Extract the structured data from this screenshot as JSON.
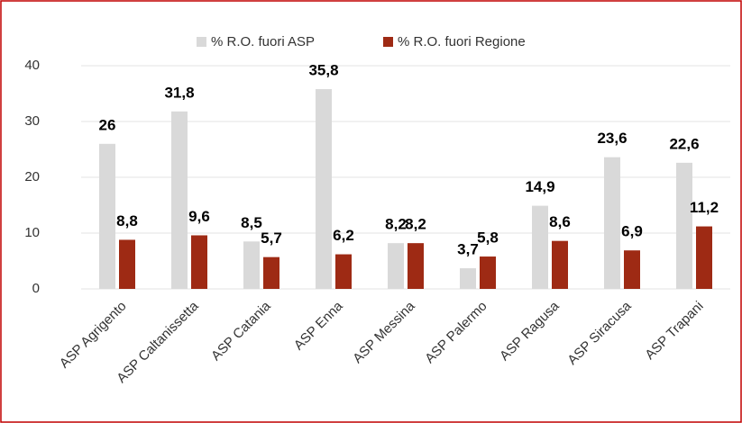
{
  "chart_data": {
    "type": "bar",
    "categories": [
      "ASP Agrigento",
      "ASP Caltanissetta",
      "ASP Catania",
      "ASP Enna",
      "ASP Messina",
      "ASP Palermo",
      "ASP Ragusa",
      "ASP Siracusa",
      "ASP Trapani"
    ],
    "series": [
      {
        "name": "% R.O. fuori ASP",
        "color": "#d9d9d9",
        "values": [
          26,
          31.8,
          8.5,
          35.8,
          8.2,
          3.7,
          14.9,
          23.6,
          22.6
        ],
        "value_labels": [
          "26",
          "31,8",
          "8,5",
          "35,8",
          "8,2",
          "3,7",
          "14,9",
          "23,6",
          "22,6"
        ]
      },
      {
        "name": "% R.O. fuori Regione",
        "color": "#9e2a14",
        "values": [
          8.8,
          9.6,
          5.7,
          6.2,
          8.2,
          5.8,
          8.6,
          6.9,
          11.2
        ],
        "value_labels": [
          "8,8",
          "9,6",
          "5,7",
          "6,2",
          "8,2",
          "5,8",
          "8,6",
          "6,9",
          "11,2"
        ]
      }
    ],
    "ylim": [
      0,
      40
    ],
    "yticks": [
      0,
      10,
      20,
      30,
      40
    ],
    "grid": true,
    "legend": "top"
  }
}
